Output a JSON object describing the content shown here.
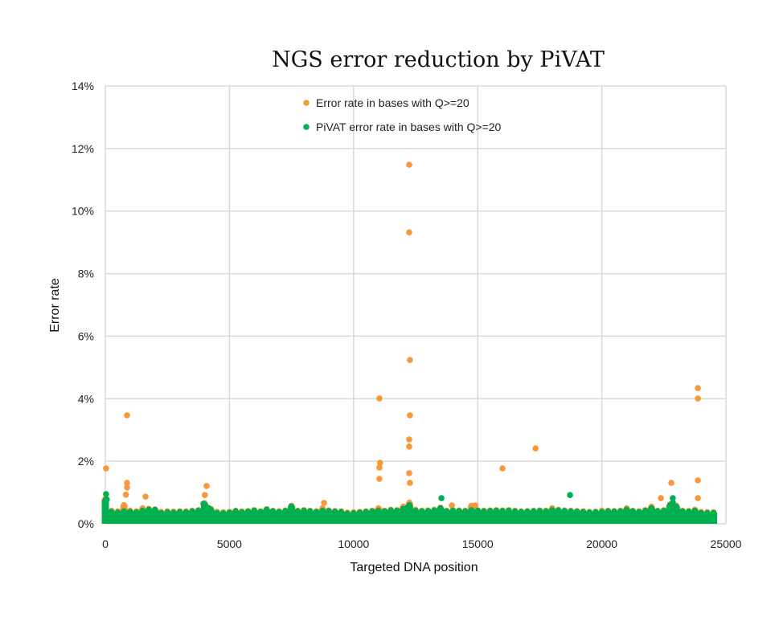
{
  "chart_data": {
    "type": "scatter",
    "title": "NGS error reduction by PiVAT",
    "xlabel": "Targeted DNA position",
    "ylabel": "Error rate",
    "xlim": [
      0,
      25000
    ],
    "ylim": [
      0,
      14
    ],
    "x_ticks": [
      "0",
      "5000",
      "10000",
      "15000",
      "20000",
      "25000"
    ],
    "y_ticks": [
      "0%",
      "2%",
      "4%",
      "6%",
      "8%",
      "10%",
      "12%",
      "14%"
    ],
    "grid": true,
    "legend_position": "top-center",
    "series": [
      {
        "name": "Error rate in bases with Q>=20",
        "color": "#f7993a",
        "points": [
          [
            30,
            1.77
          ],
          [
            875,
            3.47
          ],
          [
            875,
            1.31
          ],
          [
            875,
            1.16
          ],
          [
            830,
            0.93
          ],
          [
            1620,
            0.87
          ],
          [
            4080,
            1.21
          ],
          [
            4010,
            0.92
          ],
          [
            8810,
            0.67
          ],
          [
            11040,
            4.01
          ],
          [
            11070,
            1.95
          ],
          [
            11040,
            1.8
          ],
          [
            11040,
            1.44
          ],
          [
            11040,
            0.46
          ],
          [
            12240,
            11.48
          ],
          [
            12240,
            9.32
          ],
          [
            12270,
            5.24
          ],
          [
            12270,
            3.47
          ],
          [
            12240,
            2.7
          ],
          [
            12240,
            2.47
          ],
          [
            12240,
            1.62
          ],
          [
            12270,
            1.31
          ],
          [
            13960,
            0.59
          ],
          [
            14900,
            0.59
          ],
          [
            16000,
            1.77
          ],
          [
            17330,
            2.41
          ],
          [
            22380,
            0.82
          ],
          [
            22800,
            1.31
          ],
          [
            23870,
            4.34
          ],
          [
            23870,
            4.01
          ],
          [
            23870,
            1.39
          ],
          [
            23870,
            0.82
          ]
        ],
        "baseline_values": [
          0.8,
          0.42,
          0.4,
          0.6,
          0.42,
          0.4,
          0.5,
          0.48,
          0.46,
          0.38,
          0.4,
          0.39,
          0.4,
          0.4,
          0.42,
          0.44,
          0.66,
          0.48,
          0.38,
          0.37,
          0.38,
          0.42,
          0.4,
          0.41,
          0.44,
          0.4,
          0.47,
          0.42,
          0.4,
          0.43,
          0.58,
          0.42,
          0.44,
          0.42,
          0.4,
          0.5,
          0.43,
          0.41,
          0.4,
          0.36,
          0.37,
          0.38,
          0.4,
          0.42,
          0.5,
          0.42,
          0.45,
          0.44,
          0.55,
          0.68,
          0.45,
          0.42,
          0.43,
          0.45,
          0.52,
          0.42,
          0.44,
          0.43,
          0.42,
          0.58,
          0.44,
          0.42,
          0.43,
          0.44,
          0.43,
          0.44,
          0.42,
          0.4,
          0.41,
          0.42,
          0.43,
          0.42,
          0.5,
          0.45,
          0.43,
          0.42,
          0.41,
          0.4,
          0.38,
          0.39,
          0.42,
          0.42,
          0.41,
          0.42,
          0.5,
          0.42,
          0.4,
          0.44,
          0.55,
          0.42,
          0.44,
          0.62,
          0.58,
          0.42,
          0.41,
          0.45,
          0.38,
          0.37,
          0.37
        ]
      },
      {
        "name": "PiVAT error rate in bases with Q>=20",
        "color": "#00b050",
        "points": [
          [
            30,
            0.95
          ],
          [
            60,
            0.78
          ],
          [
            3950,
            0.64
          ],
          [
            4150,
            0.51
          ],
          [
            7480,
            0.55
          ],
          [
            12200,
            0.55
          ],
          [
            13540,
            0.82
          ],
          [
            18720,
            0.92
          ],
          [
            22860,
            0.82
          ],
          [
            22860,
            0.68
          ]
        ],
        "baseline_values": [
          0.75,
          0.38,
          0.36,
          0.4,
          0.38,
          0.37,
          0.42,
          0.45,
          0.45,
          0.35,
          0.37,
          0.36,
          0.38,
          0.37,
          0.4,
          0.42,
          0.62,
          0.45,
          0.35,
          0.34,
          0.36,
          0.4,
          0.37,
          0.39,
          0.42,
          0.38,
          0.45,
          0.4,
          0.38,
          0.41,
          0.55,
          0.4,
          0.42,
          0.4,
          0.38,
          0.42,
          0.41,
          0.39,
          0.38,
          0.33,
          0.34,
          0.36,
          0.38,
          0.4,
          0.42,
          0.4,
          0.43,
          0.42,
          0.48,
          0.6,
          0.42,
          0.4,
          0.41,
          0.43,
          0.5,
          0.4,
          0.42,
          0.41,
          0.4,
          0.44,
          0.42,
          0.4,
          0.41,
          0.42,
          0.41,
          0.42,
          0.4,
          0.38,
          0.39,
          0.4,
          0.41,
          0.4,
          0.44,
          0.43,
          0.41,
          0.4,
          0.39,
          0.38,
          0.36,
          0.37,
          0.38,
          0.4,
          0.39,
          0.4,
          0.45,
          0.4,
          0.38,
          0.42,
          0.5,
          0.4,
          0.42,
          0.6,
          0.55,
          0.4,
          0.39,
          0.42,
          0.35,
          0.35,
          0.35
        ]
      }
    ],
    "baseline_x": [
      0,
      250,
      500,
      750,
      1000,
      1250,
      1500,
      1750,
      2000,
      2250,
      2500,
      2750,
      3000,
      3250,
      3500,
      3750,
      4000,
      4250,
      4500,
      4750,
      5000,
      5250,
      5500,
      5750,
      6000,
      6250,
      6500,
      6750,
      7000,
      7250,
      7500,
      7750,
      8000,
      8250,
      8500,
      8750,
      9000,
      9250,
      9500,
      9750,
      10000,
      10250,
      10500,
      10750,
      11000,
      11250,
      11500,
      11750,
      12000,
      12250,
      12500,
      12750,
      13000,
      13250,
      13500,
      13750,
      14000,
      14250,
      14500,
      14750,
      15000,
      15250,
      15500,
      15750,
      16000,
      16250,
      16500,
      16750,
      17000,
      17250,
      17500,
      17750,
      18000,
      18250,
      18500,
      18750,
      19000,
      19250,
      19500,
      19750,
      20000,
      20250,
      20500,
      20750,
      21000,
      21250,
      21500,
      21750,
      22000,
      22250,
      22500,
      22750,
      23000,
      23250,
      23500,
      23750,
      24000,
      24250,
      24500
    ]
  }
}
